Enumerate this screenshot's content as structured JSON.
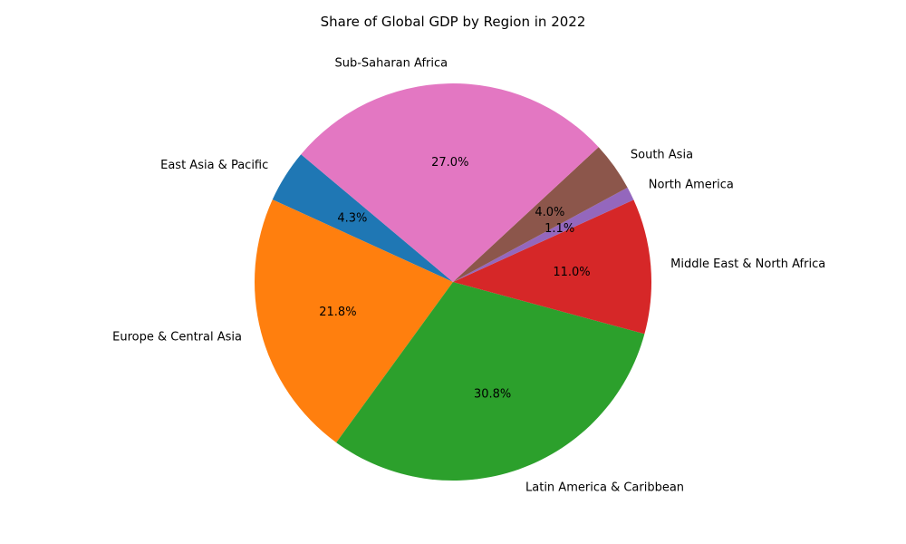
{
  "chart_data": {
    "type": "pie",
    "title": "Share of Global GDP by Region in 2022",
    "start_angle_deg": 140,
    "direction": "counterclockwise",
    "slices": [
      {
        "label": "East Asia & Pacific",
        "value": 4.3,
        "pct_label": "4.3%",
        "color": "#1f77b4"
      },
      {
        "label": "Europe & Central Asia",
        "value": 21.8,
        "pct_label": "21.8%",
        "color": "#ff7f0e"
      },
      {
        "label": "Latin America & Caribbean",
        "value": 30.8,
        "pct_label": "30.8%",
        "color": "#2ca02c"
      },
      {
        "label": "Middle East & North Africa",
        "value": 11.0,
        "pct_label": "11.0%",
        "color": "#d62728"
      },
      {
        "label": "North America",
        "value": 1.1,
        "pct_label": "1.1%",
        "color": "#9467bd"
      },
      {
        "label": "South Asia",
        "value": 4.0,
        "pct_label": "4.0%",
        "color": "#8c564b"
      },
      {
        "label": "Sub-Saharan Africa",
        "value": 27.0,
        "pct_label": "27.0%",
        "color": "#e377c2"
      }
    ]
  }
}
